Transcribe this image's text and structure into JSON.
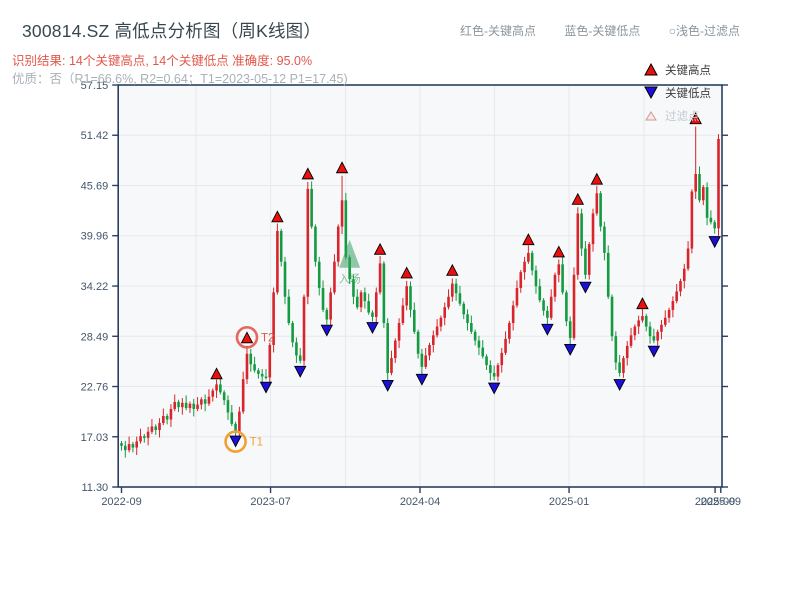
{
  "header": {
    "title": "300814.SZ 高低点分析图（周K线图）",
    "legend_top": {
      "high": "红色-关键高点",
      "low": "蓝色-关键低点",
      "filter": "○浅色-过滤点"
    },
    "result_line": "识别结果: 14个关键高点, 14个关键低点  准确度: 95.0%",
    "quality_line": "优质：否（R1=66.6%, R2=0.64；T1=2023-05-12 P1=17.45)"
  },
  "chart_legend": {
    "high": "关键高点",
    "low": "关键低点",
    "filter": "过滤点"
  },
  "colors": {
    "up_candle": "#d7252b",
    "down_candle": "#149a41",
    "key_high_marker": "#e8110e",
    "key_low_marker": "#1a10d8",
    "marker_edge": "#000000",
    "plot_bg": "#f7f8fa",
    "grid": "#e6e8eb",
    "spine": "#2a3f5f",
    "axis_label": "#43566a",
    "t1_circle": "#f0a135",
    "t2_circle": "#e2574b",
    "entry_green": "rgba(58,160,96,0.55)",
    "entry_text": "rgba(70,160,100,0.65)",
    "filter_fill": "#fbe9e5",
    "filter_edge": "#cf9b92"
  },
  "chart_data": {
    "type": "candlestick",
    "title": "300814.SZ 高低点分析图（周K线图）",
    "frequency": "weekly",
    "ylim": [
      11.3,
      57.15
    ],
    "y_tick_labels": [
      "57.15",
      "51.42",
      "45.69",
      "39.96",
      "34.22",
      "28.49",
      "22.76",
      "17.03",
      "11.30"
    ],
    "y_tick_values": [
      57.15,
      51.42,
      45.69,
      39.96,
      34.22,
      28.49,
      22.76,
      17.03,
      11.3
    ],
    "x_ticks": [
      {
        "label": "2022-09",
        "week": 0
      },
      {
        "label": "2023-07",
        "week": 39.2
      },
      {
        "label": "2024-04",
        "week": 78.5
      },
      {
        "label": "2025-01",
        "week": 117.7
      },
      {
        "label": "2025-09",
        "week": 156.1
      },
      {
        "label": "2025-09",
        "week": 157.6
      }
    ],
    "vgrid_weeks": [
      19.6,
      39.2,
      58.9,
      78.5,
      98.1,
      117.7,
      137.4
    ],
    "weekly_closes": [
      16.0,
      15.5,
      16.2,
      15.8,
      16.5,
      17.1,
      16.9,
      17.6,
      18.2,
      17.8,
      18.6,
      19.4,
      19.0,
      20.2,
      21.0,
      20.4,
      20.9,
      20.3,
      20.8,
      20.2,
      20.7,
      21.3,
      20.8,
      21.6,
      22.3,
      23.0,
      22.1,
      21.2,
      19.8,
      18.5,
      17.6,
      19.9,
      23.6,
      26.5,
      25.3,
      24.6,
      24.2,
      23.9,
      23.8,
      27.5,
      33.5,
      40.5,
      37.0,
      33.0,
      30.0,
      27.8,
      26.3,
      25.7,
      33.0,
      45.3,
      41.0,
      37.0,
      34.0,
      31.5,
      30.4,
      33.5,
      37.0,
      41.0,
      44.0,
      37.5,
      35.0,
      33.0,
      31.8,
      33.5,
      32.5,
      31.2,
      30.7,
      33.5,
      36.8,
      30.0,
      24.3,
      26.0,
      28.0,
      30.0,
      32.0,
      34.2,
      31.5,
      29.0,
      26.5,
      25.0,
      26.3,
      27.5,
      28.6,
      29.6,
      30.6,
      31.8,
      33.0,
      34.5,
      33.4,
      32.2,
      31.0,
      30.0,
      29.0,
      28.0,
      27.2,
      26.2,
      25.2,
      24.3,
      23.9,
      25.2,
      26.6,
      28.2,
      30.0,
      32.0,
      34.0,
      35.8,
      37.0,
      38.0,
      36.0,
      34.2,
      32.6,
      31.4,
      30.6,
      33.0,
      35.5,
      36.7,
      33.5,
      30.2,
      28.3,
      35.5,
      42.5,
      38.5,
      35.5,
      39.0,
      42.5,
      44.8,
      41.0,
      38.0,
      33.0,
      28.5,
      25.5,
      24.3,
      26.0,
      27.4,
      28.6,
      29.6,
      30.3,
      30.8,
      29.6,
      28.5,
      28.0,
      29.0,
      29.8,
      30.6,
      31.5,
      32.5,
      33.6,
      34.8,
      36.2,
      38.5,
      45.0,
      47.0,
      44.0,
      45.5,
      42.0,
      41.5,
      40.8,
      51.0
    ],
    "key_highs": [
      {
        "week": 25,
        "value": 23.3
      },
      {
        "week": 33,
        "value": 27.4
      },
      {
        "week": 41,
        "value": 41.2
      },
      {
        "week": 49,
        "value": 46.1
      },
      {
        "week": 58,
        "value": 46.8
      },
      {
        "week": 68,
        "value": 37.5
      },
      {
        "week": 75,
        "value": 34.8
      },
      {
        "week": 87,
        "value": 35.1
      },
      {
        "week": 107,
        "value": 38.6
      },
      {
        "week": 115,
        "value": 37.2
      },
      {
        "week": 120,
        "value": 43.2
      },
      {
        "week": 125,
        "value": 45.5
      },
      {
        "week": 137,
        "value": 31.3
      },
      {
        "week": 151,
        "value": 52.4
      }
    ],
    "key_lows": [
      {
        "week": 30,
        "value": 17.45
      },
      {
        "week": 38,
        "value": 23.6
      },
      {
        "week": 47,
        "value": 25.4
      },
      {
        "week": 54,
        "value": 30.1
      },
      {
        "week": 66,
        "value": 30.4
      },
      {
        "week": 70,
        "value": 23.8
      },
      {
        "week": 79,
        "value": 24.5
      },
      {
        "week": 98,
        "value": 23.5
      },
      {
        "week": 112,
        "value": 30.2
      },
      {
        "week": 118,
        "value": 27.9
      },
      {
        "week": 122,
        "value": 35.0
      },
      {
        "week": 131,
        "value": 23.9
      },
      {
        "week": 140,
        "value": 27.7
      },
      {
        "week": 156,
        "value": 40.2
      }
    ],
    "annotations": {
      "entry": {
        "week": 60,
        "tip_value": 39.5,
        "base_value": 36.3,
        "label": "入场",
        "label_value": 34.6
      },
      "t1": {
        "week": 30,
        "label": "T1"
      },
      "t2": {
        "week": 33,
        "label": "T2"
      }
    }
  }
}
